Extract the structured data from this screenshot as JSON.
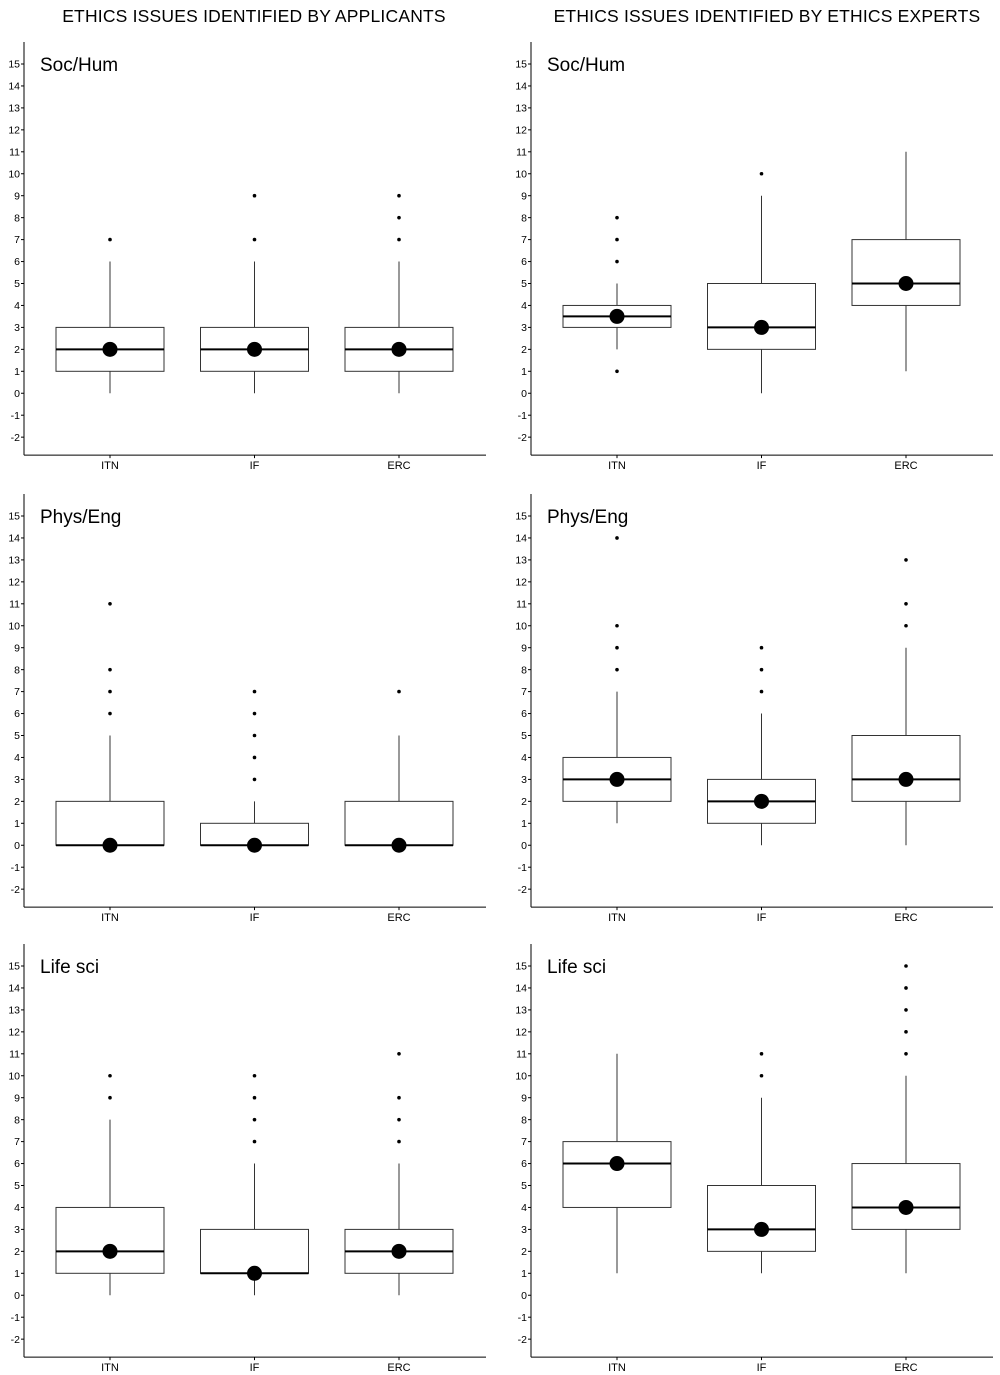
{
  "headings": {
    "left": "ETHICS ISSUES IDENTIFIED BY APPLICANTS",
    "right": "ETHICS ISSUES IDENTIFIED BY ETHICS EXPERTS"
  },
  "chart_data": [
    {
      "type": "boxplot",
      "title": "Soc/Hum",
      "group": "applicants",
      "categories": [
        "ITN",
        "IF",
        "ERC"
      ],
      "ylim": [
        -2,
        15
      ],
      "yticks": [
        -2,
        -1,
        0,
        1,
        2,
        3,
        4,
        5,
        6,
        7,
        8,
        9,
        10,
        11,
        12,
        13,
        14,
        15
      ],
      "boxes": [
        {
          "label": "ITN",
          "whisker_low": 0,
          "q1": 1,
          "median": 2,
          "q3": 3,
          "whisker_high": 6,
          "mean": 2,
          "outliers": [
            7
          ]
        },
        {
          "label": "IF",
          "whisker_low": 0,
          "q1": 1,
          "median": 2,
          "q3": 3,
          "whisker_high": 6,
          "mean": 2,
          "outliers": [
            7,
            9
          ]
        },
        {
          "label": "ERC",
          "whisker_low": 0,
          "q1": 1,
          "median": 2,
          "q3": 3,
          "whisker_high": 6,
          "mean": 2,
          "outliers": [
            7,
            8,
            9
          ]
        }
      ]
    },
    {
      "type": "boxplot",
      "title": "Soc/Hum",
      "group": "ethics experts",
      "categories": [
        "ITN",
        "IF",
        "ERC"
      ],
      "ylim": [
        -2,
        15
      ],
      "yticks": [
        -2,
        -1,
        0,
        1,
        2,
        3,
        4,
        5,
        6,
        7,
        8,
        9,
        10,
        11,
        12,
        13,
        14,
        15
      ],
      "boxes": [
        {
          "label": "ITN",
          "whisker_low": 2,
          "q1": 3,
          "median": 3.5,
          "q3": 4,
          "whisker_high": 5,
          "mean": 3.5,
          "outliers": [
            1,
            6,
            7,
            8
          ]
        },
        {
          "label": "IF",
          "whisker_low": 0,
          "q1": 2,
          "median": 3,
          "q3": 5,
          "whisker_high": 9,
          "mean": 3,
          "outliers": [
            10
          ]
        },
        {
          "label": "ERC",
          "whisker_low": 1,
          "q1": 4,
          "median": 5,
          "q3": 7,
          "whisker_high": 11,
          "mean": 5,
          "outliers": []
        }
      ]
    },
    {
      "type": "boxplot",
      "title": "Phys/Eng",
      "group": "applicants",
      "categories": [
        "ITN",
        "IF",
        "ERC"
      ],
      "ylim": [
        -2,
        15
      ],
      "yticks": [
        -2,
        -1,
        0,
        1,
        2,
        3,
        4,
        5,
        6,
        7,
        8,
        9,
        10,
        11,
        12,
        13,
        14,
        15
      ],
      "boxes": [
        {
          "label": "ITN",
          "whisker_low": 0,
          "q1": 0,
          "median": 0,
          "q3": 2,
          "whisker_high": 5,
          "mean": 0,
          "outliers": [
            6,
            7,
            8,
            11
          ]
        },
        {
          "label": "IF",
          "whisker_low": 0,
          "q1": 0,
          "median": 0,
          "q3": 1,
          "whisker_high": 2,
          "mean": 0,
          "outliers": [
            3,
            4,
            5,
            6,
            7
          ]
        },
        {
          "label": "ERC",
          "whisker_low": 0,
          "q1": 0,
          "median": 0,
          "q3": 2,
          "whisker_high": 5,
          "mean": 0,
          "outliers": [
            7
          ]
        }
      ]
    },
    {
      "type": "boxplot",
      "title": "Phys/Eng",
      "group": "ethics experts",
      "categories": [
        "ITN",
        "IF",
        "ERC"
      ],
      "ylim": [
        -2,
        15
      ],
      "yticks": [
        -2,
        -1,
        0,
        1,
        2,
        3,
        4,
        5,
        6,
        7,
        8,
        9,
        10,
        11,
        12,
        13,
        14,
        15
      ],
      "boxes": [
        {
          "label": "ITN",
          "whisker_low": 1,
          "q1": 2,
          "median": 3,
          "q3": 4,
          "whisker_high": 7,
          "mean": 3,
          "outliers": [
            8,
            9,
            10,
            14
          ]
        },
        {
          "label": "IF",
          "whisker_low": 0,
          "q1": 1,
          "median": 2,
          "q3": 3,
          "whisker_high": 6,
          "mean": 2,
          "outliers": [
            7,
            8,
            9
          ]
        },
        {
          "label": "ERC",
          "whisker_low": 0,
          "q1": 2,
          "median": 3,
          "q3": 5,
          "whisker_high": 9,
          "mean": 3,
          "outliers": [
            10,
            11,
            13
          ]
        }
      ]
    },
    {
      "type": "boxplot",
      "title": "Life sci",
      "group": "applicants",
      "categories": [
        "ITN",
        "IF",
        "ERC"
      ],
      "ylim": [
        -2,
        15
      ],
      "yticks": [
        -2,
        -1,
        0,
        1,
        2,
        3,
        4,
        5,
        6,
        7,
        8,
        9,
        10,
        11,
        12,
        13,
        14,
        15
      ],
      "boxes": [
        {
          "label": "ITN",
          "whisker_low": 0,
          "q1": 1,
          "median": 2,
          "q3": 4,
          "whisker_high": 8,
          "mean": 2,
          "outliers": [
            9,
            10
          ]
        },
        {
          "label": "IF",
          "whisker_low": 0,
          "q1": 1,
          "median": 1,
          "q3": 3,
          "whisker_high": 6,
          "mean": 1,
          "outliers": [
            7,
            8,
            9,
            10
          ]
        },
        {
          "label": "ERC",
          "whisker_low": 0,
          "q1": 1,
          "median": 2,
          "q3": 3,
          "whisker_high": 6,
          "mean": 2,
          "outliers": [
            7,
            8,
            9,
            11
          ]
        }
      ]
    },
    {
      "type": "boxplot",
      "title": "Life sci",
      "group": "ethics experts",
      "categories": [
        "ITN",
        "IF",
        "ERC"
      ],
      "ylim": [
        -2,
        15
      ],
      "yticks": [
        -2,
        -1,
        0,
        1,
        2,
        3,
        4,
        5,
        6,
        7,
        8,
        9,
        10,
        11,
        12,
        13,
        14,
        15
      ],
      "boxes": [
        {
          "label": "ITN",
          "whisker_low": 1,
          "q1": 4,
          "median": 6,
          "q3": 7,
          "whisker_high": 11,
          "mean": 6,
          "outliers": []
        },
        {
          "label": "IF",
          "whisker_low": 1,
          "q1": 2,
          "median": 3,
          "q3": 5,
          "whisker_high": 9,
          "mean": 3,
          "outliers": [
            10,
            11
          ]
        },
        {
          "label": "ERC",
          "whisker_low": 1,
          "q1": 3,
          "median": 4,
          "q3": 6,
          "whisker_high": 10,
          "mean": 4,
          "outliers": [
            11,
            12,
            13,
            14,
            15
          ]
        }
      ]
    }
  ]
}
